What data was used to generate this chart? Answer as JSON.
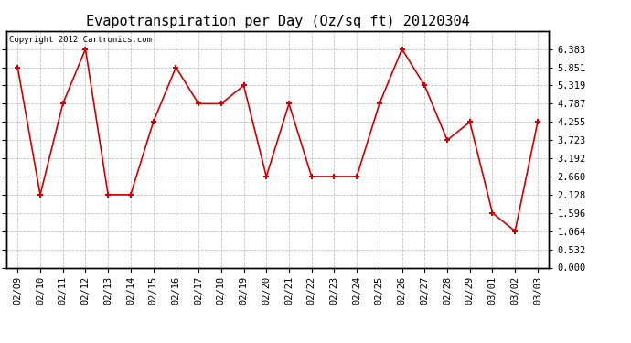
{
  "title": "Evapotranspiration per Day (Oz/sq ft) 20120304",
  "copyright_text": "Copyright 2012 Cartronics.com",
  "dates": [
    "02/09",
    "02/10",
    "02/11",
    "02/12",
    "02/13",
    "02/14",
    "02/15",
    "02/16",
    "02/17",
    "02/18",
    "02/19",
    "02/20",
    "02/21",
    "02/22",
    "02/23",
    "02/24",
    "02/25",
    "02/26",
    "02/27",
    "02/28",
    "02/29",
    "03/01",
    "03/02",
    "03/03"
  ],
  "values": [
    5.851,
    2.128,
    4.787,
    6.383,
    2.128,
    2.128,
    4.255,
    5.851,
    4.787,
    4.787,
    5.319,
    2.66,
    4.787,
    2.66,
    2.66,
    2.66,
    4.787,
    6.383,
    5.319,
    3.723,
    4.255,
    1.596,
    1.064,
    4.255
  ],
  "y_ticks": [
    0.0,
    0.532,
    1.064,
    1.596,
    2.128,
    2.66,
    3.192,
    3.723,
    4.255,
    4.787,
    5.319,
    5.851,
    6.383
  ],
  "ylim": [
    0.0,
    6.916
  ],
  "line_color": "#cc0000",
  "marker_color": "#cc0000",
  "background_color": "#ffffff",
  "grid_color": "#bbbbbb",
  "title_fontsize": 11,
  "tick_fontsize": 7.5,
  "copyright_fontsize": 6.5
}
